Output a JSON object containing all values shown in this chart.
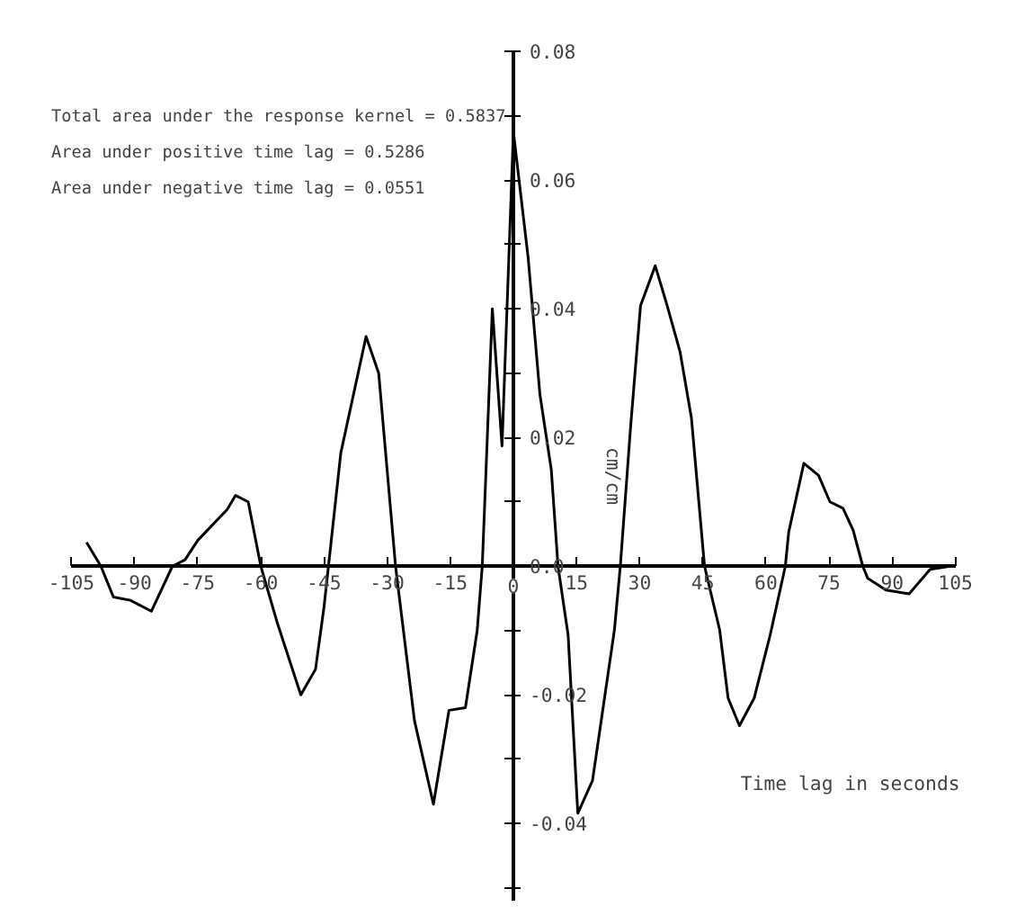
{
  "chart_data": {
    "type": "line",
    "xlabel": "Time lag in seconds",
    "ylabel": "cm/cm",
    "annotations": [
      "Total area under the response kernel = 0.5837",
      "Area under positive time lag = 0.5286",
      "Area under negative time lag = 0.0551"
    ],
    "x": [
      -101.4,
      -98,
      -95,
      -91,
      -86,
      -81,
      -78,
      -75,
      -68,
      -66,
      -63,
      -60,
      -56,
      -50.5,
      -47,
      -45,
      -41,
      -35,
      -32,
      -28,
      -23.5,
      -19,
      -15.3,
      -11.4,
      -8.6,
      -7.4,
      -5,
      -2.7,
      0,
      3.5,
      6.3,
      9,
      10.6,
      13,
      15.3,
      18.8,
      24,
      25.4,
      27.8,
      30.2,
      33.7,
      36.4,
      39.6,
      42.3,
      45.4,
      49,
      51,
      53.7,
      57.2,
      61,
      64.6,
      65.4,
      69,
      72.5,
      75.2,
      78.3,
      80.7,
      83,
      84.2,
      88.5,
      94,
      99,
      103.8
    ],
    "series": [
      {
        "color": "#000000",
        "values": [
          0.0037,
          0,
          -0.0048,
          -0.0053,
          -0.007,
          0,
          0.001,
          0.004,
          0.0088,
          0.011,
          0.01,
          0,
          -0.009,
          -0.02,
          -0.016,
          -0.0064,
          0.0176,
          0.0357,
          0.03,
          0,
          -0.024,
          -0.037,
          -0.0224,
          -0.022,
          -0.01,
          0,
          0.04,
          0.0187,
          0.0675,
          0.048,
          0.0267,
          0.015,
          0,
          -0.0107,
          -0.0384,
          -0.0333,
          -0.0099,
          0,
          0.0213,
          0.0405,
          0.0467,
          0.0408,
          0.0333,
          0.023,
          0,
          -0.0099,
          -0.0205,
          -0.0248,
          -0.0205,
          -0.0107,
          0,
          0.0053,
          0.016,
          0.0141,
          0.01,
          0.009,
          0.0056,
          0,
          -0.0019,
          -0.0037,
          -0.0043,
          -0.0005,
          0
        ]
      }
    ],
    "xlim": [
      -105,
      105
    ],
    "ylim": [
      -0.052,
      0.08
    ],
    "xticks": [
      -105,
      -90,
      -75,
      -60,
      -45,
      -30,
      -15,
      0,
      15,
      30,
      45,
      60,
      75,
      90,
      105
    ],
    "yticks": [
      {
        "value": -0.05,
        "label": null
      },
      -0.04,
      {
        "value": -0.03,
        "label": null
      },
      -0.02,
      {
        "value": -0.01,
        "label": null
      },
      {
        "value": 0,
        "label": "0.0"
      },
      {
        "value": 0.01,
        "label": null
      },
      0.02,
      {
        "value": 0.03,
        "label": null
      },
      0.04,
      {
        "value": 0.05,
        "label": null
      },
      0.06,
      {
        "value": 0.07,
        "label": null
      },
      0.08
    ],
    "grid": false,
    "marker": "none",
    "line_style": "solid"
  }
}
